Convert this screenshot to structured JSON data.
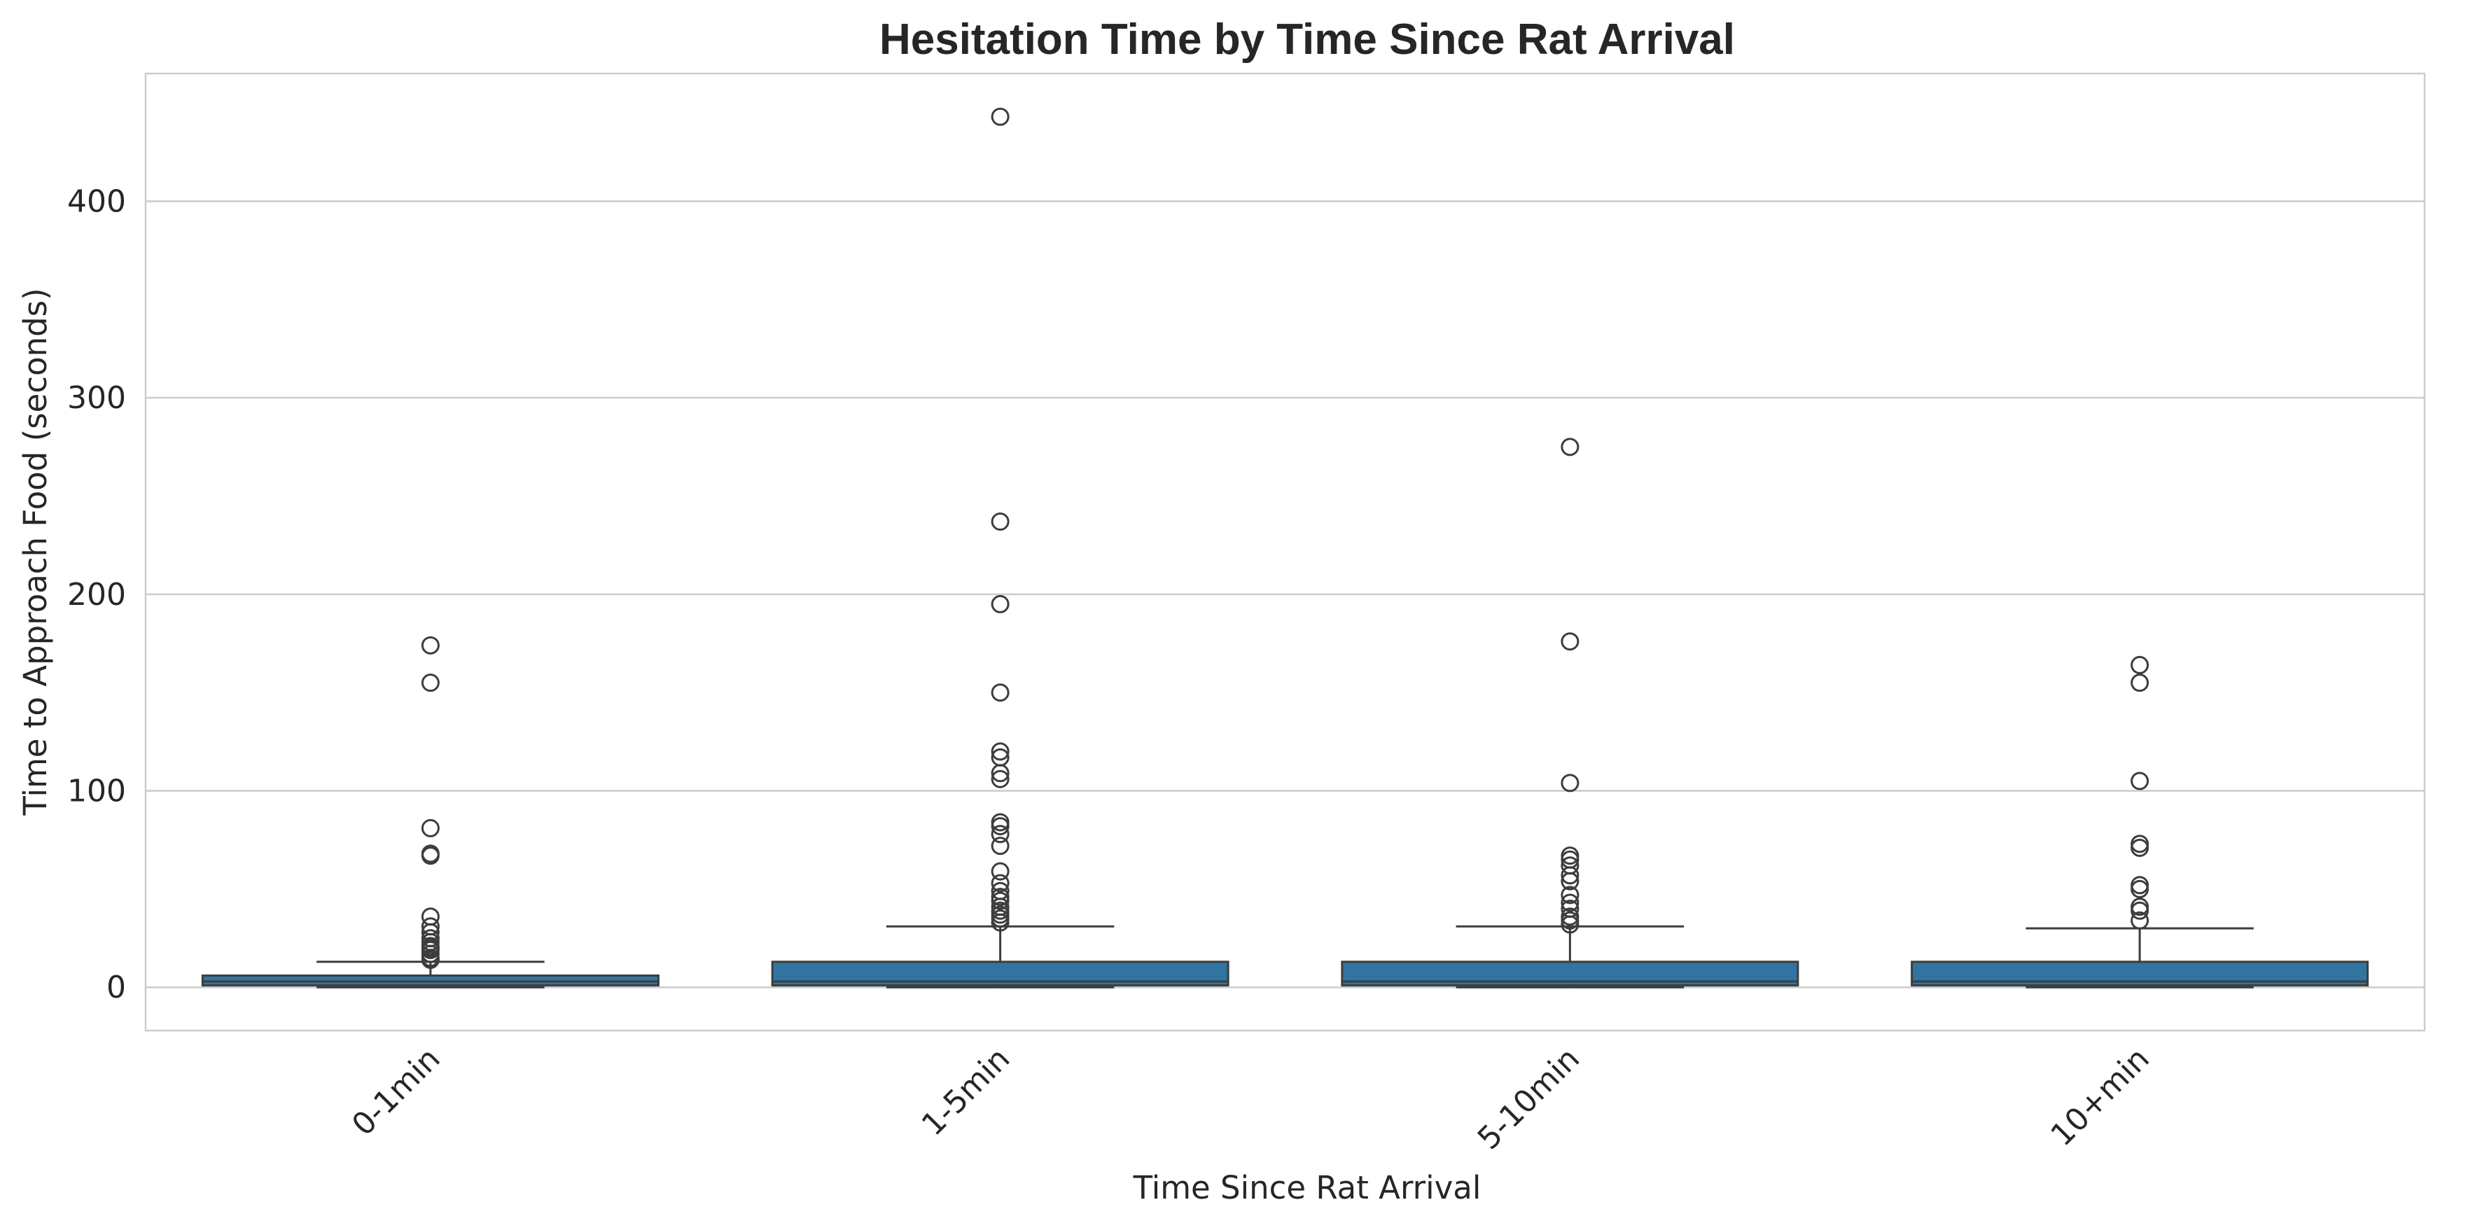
{
  "chart_data": {
    "type": "box",
    "title": "Hesitation Time by Time Since Rat Arrival",
    "xlabel": "Time Since Rat Arrival",
    "ylabel": "Time to Approach Food (seconds)",
    "ylim": [
      -22,
      465
    ],
    "yticks": [
      0,
      100,
      200,
      300,
      400
    ],
    "grid": "horizontal",
    "colors": {
      "box_fill": "#3274a1",
      "box_edge": "#3d3d3d",
      "grid": "#cccccc",
      "frame": "#cccccc"
    },
    "categories": [
      "0-1min",
      "1-5min",
      "5-10min",
      "10+min"
    ],
    "boxes": [
      {
        "category": "0-1min",
        "whisker_low": 0,
        "q1": 1,
        "median": 3,
        "q3": 6,
        "whisker_high": 13,
        "outliers": [
          174,
          155,
          81,
          68,
          67,
          36,
          31,
          28,
          25,
          23,
          21,
          20,
          19,
          17,
          15,
          14
        ]
      },
      {
        "category": "1-5min",
        "whisker_low": 0,
        "q1": 1,
        "median": 3,
        "q3": 13,
        "whisker_high": 31,
        "outliers": [
          443,
          237,
          195,
          150,
          120,
          117,
          109,
          106,
          84,
          82,
          78,
          72,
          59,
          53,
          49,
          46,
          44,
          41,
          39,
          37,
          35,
          33
        ]
      },
      {
        "category": "5-10min",
        "whisker_low": 0,
        "q1": 1,
        "median": 3,
        "q3": 13,
        "whisker_high": 31,
        "outliers": [
          275,
          176,
          104,
          67,
          65,
          62,
          57,
          54,
          47,
          43,
          40,
          36,
          34,
          32
        ]
      },
      {
        "category": "10+min",
        "whisker_low": 0,
        "q1": 1,
        "median": 3,
        "q3": 13,
        "whisker_high": 30,
        "outliers": [
          164,
          155,
          105,
          73,
          71,
          52,
          50,
          41,
          39,
          34
        ]
      }
    ]
  }
}
